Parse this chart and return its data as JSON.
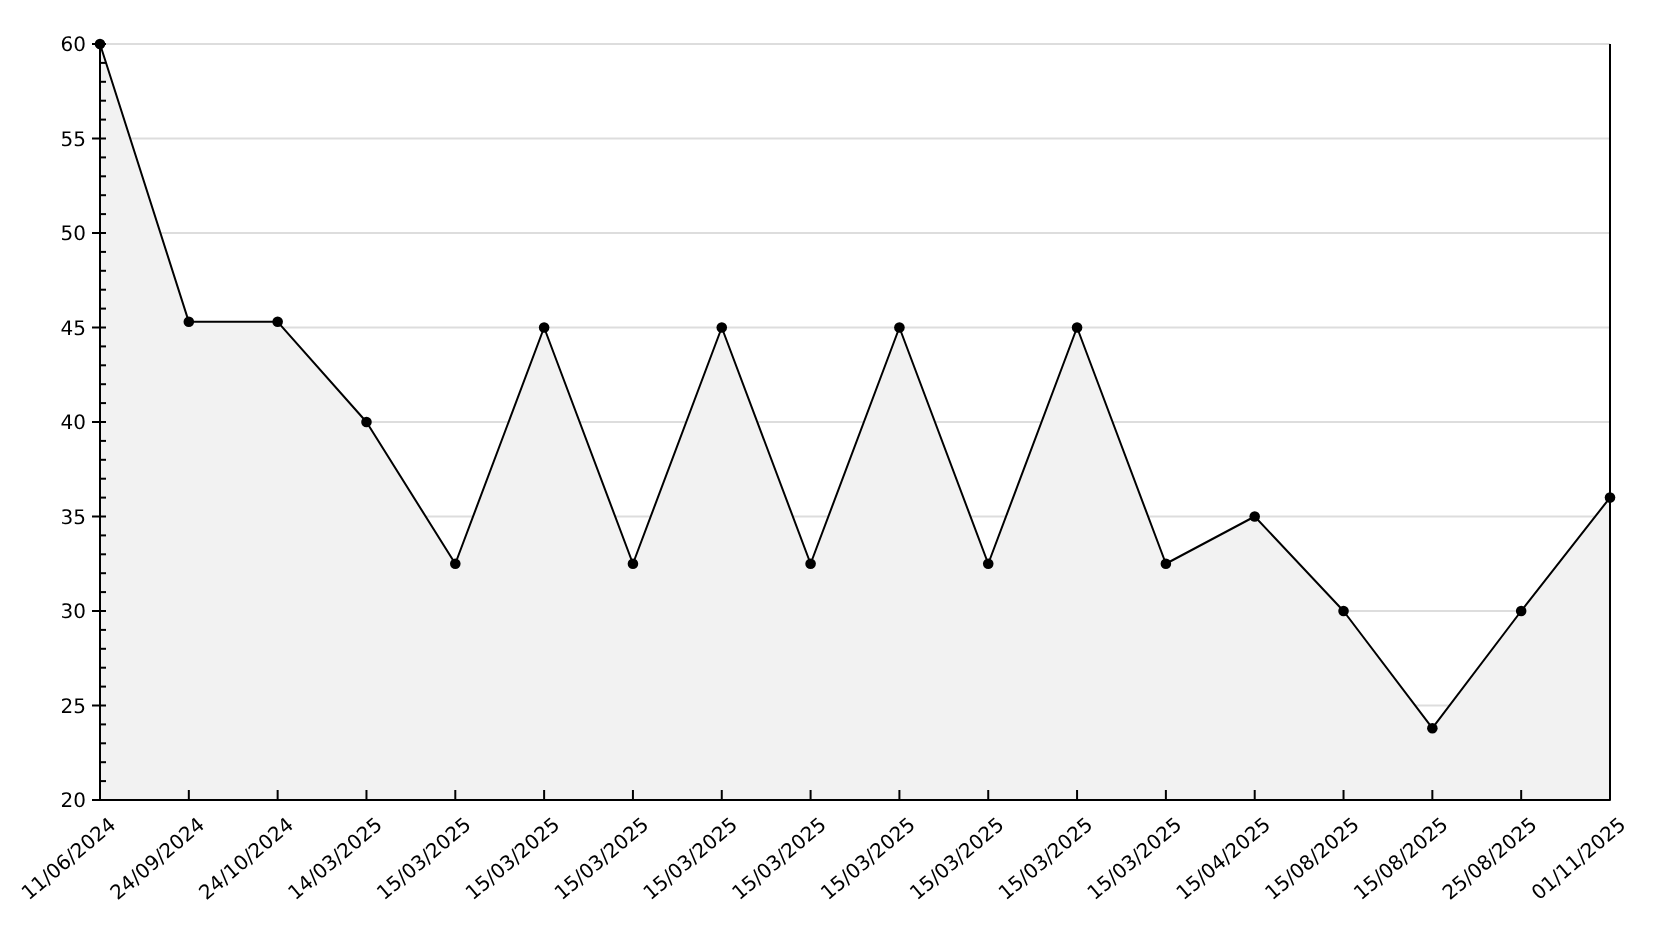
{
  "chart_data": {
    "type": "area",
    "categories": [
      "11/06/2024",
      "24/09/2024",
      "24/10/2024",
      "14/03/2025",
      "15/03/2025",
      "15/03/2025",
      "15/03/2025",
      "15/03/2025",
      "15/03/2025",
      "15/03/2025",
      "15/03/2025",
      "15/03/2025",
      "15/03/2025",
      "15/04/2025",
      "15/08/2025",
      "15/08/2025",
      "25/08/2025",
      "01/11/2025"
    ],
    "series": [
      {
        "color": "#000000",
        "values": [
          60,
          45.3,
          45.3,
          40,
          32.5,
          45,
          32.5,
          45,
          32.5,
          45,
          32.5,
          45,
          32.5,
          35,
          30,
          23.8,
          30,
          36
        ]
      }
    ],
    "ylim": [
      20,
      60
    ],
    "yticks": [
      20,
      25,
      30,
      35,
      40,
      45,
      50,
      55,
      60
    ],
    "grid": "y",
    "marker": "circle",
    "line_style": "solid"
  }
}
